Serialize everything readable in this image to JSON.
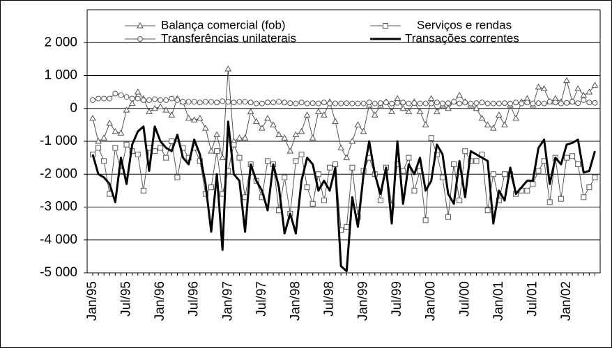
{
  "chart_data": {
    "type": "line",
    "categories": [
      "Jan/95",
      null,
      null,
      null,
      null,
      null,
      "Jul/95",
      null,
      null,
      null,
      null,
      null,
      "Jan/96",
      null,
      null,
      null,
      null,
      null,
      "Jul/96",
      null,
      null,
      null,
      null,
      null,
      "Jan/97",
      null,
      null,
      null,
      null,
      null,
      "Jul/97",
      null,
      null,
      null,
      null,
      null,
      "Jan/98",
      null,
      null,
      null,
      null,
      null,
      "Jul/98",
      null,
      null,
      null,
      null,
      null,
      "Jan/99",
      null,
      null,
      null,
      null,
      null,
      "Jul/99",
      null,
      null,
      null,
      null,
      null,
      "Jan/00",
      null,
      null,
      null,
      null,
      null,
      "Jul/00",
      null,
      null,
      null,
      null,
      null,
      "Jan/01",
      null,
      null,
      null,
      null,
      null,
      "Jul/01",
      null,
      null,
      null,
      null,
      null,
      "Jan/02",
      null,
      null,
      null,
      null,
      null
    ],
    "series": [
      {
        "name": "Balança comercial (fob)",
        "color": "#555555",
        "marker": "triangle",
        "line_width": 1,
        "values": [
          -300,
          -1000,
          -900,
          -450,
          -700,
          -750,
          -50,
          150,
          500,
          300,
          -100,
          0,
          50,
          -50,
          -200,
          300,
          200,
          -300,
          -350,
          -300,
          -600,
          -1300,
          -800,
          -1500,
          1200,
          -1000,
          -900,
          -900,
          -100,
          -400,
          -600,
          -300,
          -500,
          -800,
          -900,
          -1300,
          -800,
          -700,
          -200,
          -900,
          -100,
          -200,
          200,
          -400,
          -1200,
          -1500,
          -1000,
          -500,
          -700,
          100,
          -200,
          100,
          200,
          -100,
          300,
          0,
          -100,
          200,
          -100,
          -500,
          300,
          -100,
          100,
          0,
          200,
          400,
          200,
          100,
          0,
          -300,
          -500,
          -600,
          -200,
          -500,
          100,
          -300,
          200,
          300,
          100,
          650,
          600,
          200,
          300,
          200,
          850,
          200,
          600,
          400,
          500,
          700
        ]
      },
      {
        "name": "Serviços e rendas",
        "color": "#555555",
        "marker": "square",
        "line_width": 1,
        "values": [
          -1400,
          -1200,
          -1600,
          -2600,
          -1200,
          -1900,
          -1100,
          -1300,
          -1400,
          -2500,
          -1200,
          -1300,
          -1200,
          -1500,
          -1000,
          -2100,
          -1200,
          -1500,
          -1200,
          -1600,
          -2600,
          -2400,
          -1300,
          -2600,
          -1900,
          -1100,
          -1500,
          -2700,
          -1700,
          -2200,
          -2700,
          -1600,
          -1700,
          -3100,
          -2100,
          -3200,
          -1600,
          -1400,
          -2400,
          -2900,
          -2000,
          -2800,
          -1800,
          -1700,
          -3700,
          -3600,
          -1800,
          -3300,
          -1900,
          -1500,
          -2000,
          -2800,
          -1800,
          -2950,
          -1700,
          -1900,
          -1500,
          -2500,
          -1900,
          -3400,
          -900,
          -1400,
          -2100,
          -3300,
          -1700,
          -2800,
          -1300,
          -1600,
          -1600,
          -1400,
          -3100,
          -2000,
          -2800,
          -2000,
          -2000,
          -2600,
          -2500,
          -2500,
          -2300,
          -1900,
          -1600,
          -2850,
          -1500,
          -2750,
          -1500,
          -1450,
          -1700,
          -2700,
          -2400,
          -2100
        ]
      },
      {
        "name": "Transferências unilaterais",
        "color": "#555555",
        "marker": "circle",
        "line_width": 1,
        "values": [
          250,
          300,
          300,
          300,
          450,
          400,
          350,
          300,
          300,
          250,
          250,
          280,
          250,
          250,
          300,
          250,
          200,
          200,
          200,
          180,
          200,
          200,
          180,
          220,
          200,
          180,
          200,
          200,
          180,
          150,
          150,
          180,
          180,
          200,
          180,
          160,
          150,
          180,
          150,
          160,
          150,
          180,
          150,
          150,
          150,
          160,
          150,
          150,
          150,
          180,
          150,
          160,
          180,
          150,
          170,
          180,
          150,
          160,
          150,
          150,
          150,
          180,
          150,
          160,
          200,
          150,
          180,
          150,
          160,
          180,
          150,
          150,
          150,
          160,
          150,
          180,
          150,
          180,
          150,
          160,
          150,
          200,
          180,
          150,
          170,
          200,
          160,
          250,
          180,
          170
        ]
      },
      {
        "name": "Transações correntes",
        "color": "#000000",
        "marker": "none",
        "line_width": 3,
        "values": [
          -1400,
          -2000,
          -2100,
          -2300,
          -2850,
          -1500,
          -2300,
          -1100,
          -700,
          -550,
          -1900,
          -550,
          -1000,
          -1200,
          -1300,
          -800,
          -1500,
          -1700,
          -950,
          -1400,
          -2300,
          -3750,
          -2000,
          -4300,
          -400,
          -2000,
          -2200,
          -3750,
          -1700,
          -2200,
          -2500,
          -3100,
          -1700,
          -2400,
          -3800,
          -3200,
          -3800,
          -2200,
          -1500,
          -1700,
          -2500,
          -2200,
          -2500,
          -1800,
          -4800,
          -4950,
          -2700,
          -3600,
          -2000,
          -1000,
          -2000,
          -2600,
          -1800,
          -3500,
          -1000,
          -2900,
          -1700,
          -2000,
          -1500,
          -2500,
          -2200,
          -1100,
          -1400,
          -2600,
          -2900,
          -1600,
          -2700,
          -1300,
          -1400,
          -1500,
          -1600,
          -3500,
          -2500,
          -2800,
          -1800,
          -2600,
          -2400,
          -2200,
          -2200,
          -1200,
          -950,
          -2300,
          -1500,
          -1700,
          -1100,
          -1050,
          -950,
          -1950,
          -1900,
          -1300
        ]
      }
    ],
    "ylim": [
      -5000,
      3000
    ],
    "yticks": [
      {
        "value": -5000,
        "label": "-5 000"
      },
      {
        "value": -4000,
        "label": "-4 000"
      },
      {
        "value": -3000,
        "label": "-3 000"
      },
      {
        "value": -2000,
        "label": "-2 000"
      },
      {
        "value": -1000,
        "label": "-1 000"
      },
      0,
      {
        "value": 1000,
        "label": "1 000"
      },
      {
        "value": 2000,
        "label": "2 000"
      }
    ],
    "grid": true,
    "legend": "top"
  }
}
